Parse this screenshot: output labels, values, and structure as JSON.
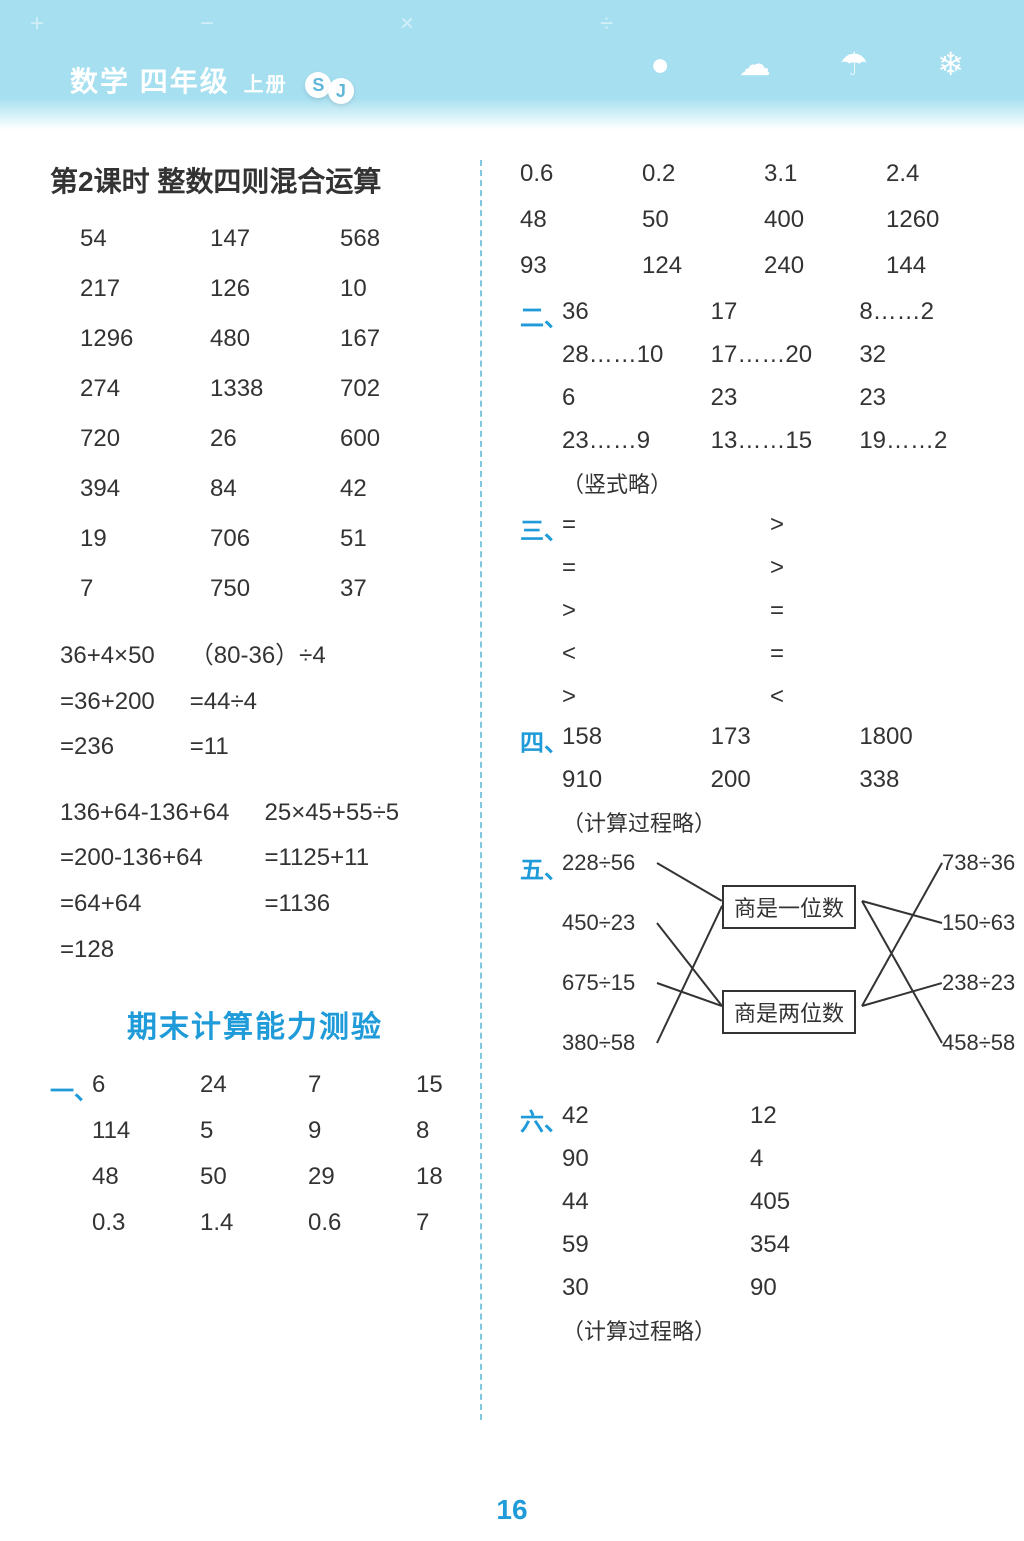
{
  "header": {
    "subject": "数学",
    "grade": "四年级",
    "volume": "上册",
    "badge_s": "S",
    "badge_j": "J"
  },
  "left": {
    "title": "第2课时  整数四则混合运算",
    "grid1": [
      "54",
      "147",
      "568",
      "217",
      "126",
      "10",
      "1296",
      "480",
      "167",
      "274",
      "1338",
      "702",
      "720",
      "26",
      "600",
      "394",
      "84",
      "42",
      "19",
      "706",
      "51",
      "7",
      "750",
      "37"
    ],
    "calc1": {
      "c1": [
        "  36+4×50",
        "=36+200",
        "=236"
      ],
      "c2": [
        "（80-36）÷4",
        "=44÷4",
        "=11"
      ]
    },
    "calc2": {
      "c1": [
        "  136+64-136+64",
        "=200-136+64",
        "=64+64",
        "=128"
      ],
      "c2": [
        "25×45+55÷5",
        "=1125+11",
        "=1136"
      ]
    },
    "test_title": "期末计算能力测验",
    "sec1_label": "一、",
    "sec1_grid": [
      "6",
      "24",
      "7",
      "15",
      "114",
      "5",
      "9",
      "8",
      "48",
      "50",
      "29",
      "18",
      "0.3",
      "1.4",
      "0.6",
      "7"
    ]
  },
  "right": {
    "top_grid": [
      "0.6",
      "0.2",
      "3.1",
      "2.4",
      "48",
      "50",
      "400",
      "1260",
      "93",
      "124",
      "240",
      "144"
    ],
    "sec2_label": "二、",
    "sec2_grid": [
      "36",
      "17",
      "8……2",
      "28……10",
      "17……20",
      "32",
      "6",
      "23",
      "23",
      "23……9",
      "13……15",
      "19……2"
    ],
    "sec2_note": "（竖式略）",
    "sec3_label": "三、",
    "sec3_grid": [
      "=",
      ">",
      "=",
      ">",
      ">",
      "=",
      "<",
      "=",
      ">",
      "<"
    ],
    "sec4_label": "四、",
    "sec4_grid": [
      "158",
      "173",
      "1800",
      "910",
      "200",
      "338"
    ],
    "sec4_note": "（计算过程略）",
    "sec5_label": "五、",
    "sec5_left": [
      "228÷56",
      "450÷23",
      "675÷15",
      "380÷58"
    ],
    "sec5_right": [
      "738÷36",
      "150÷63",
      "238÷23",
      "458÷58"
    ],
    "sec5_box1": "商是一位数",
    "sec5_box2": "商是两位数",
    "sec6_label": "六、",
    "sec6_grid": [
      "42",
      "12",
      "90",
      "4",
      "44",
      "405",
      "59",
      "354",
      "30",
      "90"
    ],
    "sec6_note": "（计算过程略）"
  },
  "page_number": "16"
}
